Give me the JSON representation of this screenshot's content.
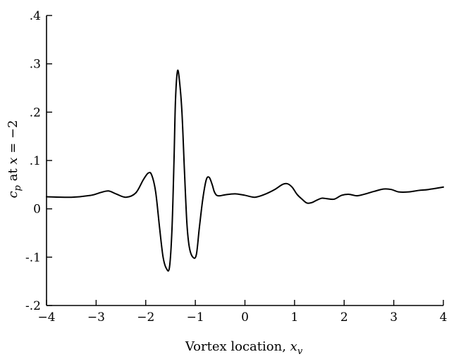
{
  "chart_data": {
    "type": "line",
    "title": "",
    "xlabel": "Vortex location, x_v",
    "xlabel_parts": {
      "text": "Vortex location, ",
      "var": "x",
      "sub": "v"
    },
    "ylabel": "c_p at x = −2",
    "ylabel_parts": {
      "var": "c",
      "sub": "p",
      "text": " at ",
      "var2": "x",
      "rest": " = −2"
    },
    "xlim": [
      -4,
      4
    ],
    "ylim": [
      -0.2,
      0.4
    ],
    "x_ticks": [
      {
        "value": -4,
        "label": "−4"
      },
      {
        "value": -3,
        "label": "−3"
      },
      {
        "value": -2,
        "label": "−2"
      },
      {
        "value": -1,
        "label": "−1"
      },
      {
        "value": 0,
        "label": "0"
      },
      {
        "value": 1,
        "label": "1"
      },
      {
        "value": 2,
        "label": "2"
      },
      {
        "value": 3,
        "label": "3"
      },
      {
        "value": 4,
        "label": "4"
      }
    ],
    "y_ticks": [
      {
        "value": -0.2,
        "label": "-.2"
      },
      {
        "value": -0.1,
        "label": "-.1"
      },
      {
        "value": 0,
        "label": "0"
      },
      {
        "value": 0.1,
        "label": ".1"
      },
      {
        "value": 0.2,
        "label": ".2"
      },
      {
        "value": 0.3,
        "label": ".3"
      },
      {
        "value": 0.4,
        "label": ".4"
      }
    ],
    "grid": false,
    "series": [
      {
        "x": [
          -4.0,
          -3.5,
          -3.1,
          -2.9,
          -2.75,
          -2.6,
          -2.4,
          -2.2,
          -2.05,
          -1.95,
          -1.88,
          -1.8,
          -1.72,
          -1.65,
          -1.58,
          -1.52,
          -1.47,
          -1.43,
          -1.4,
          -1.36,
          -1.32,
          -1.27,
          -1.22,
          -1.17,
          -1.12,
          -1.05,
          -0.98,
          -0.92,
          -0.85,
          -0.78,
          -0.72,
          -0.66,
          -0.62,
          -0.57,
          -0.5,
          -0.4,
          -0.2,
          0.0,
          0.2,
          0.4,
          0.6,
          0.75,
          0.85,
          0.95,
          1.05,
          1.15,
          1.25,
          1.35,
          1.45,
          1.55,
          1.65,
          1.8,
          1.95,
          2.1,
          2.25,
          2.4,
          2.6,
          2.8,
          2.95,
          3.1,
          3.3,
          3.5,
          3.7,
          4.0
        ],
        "y": [
          0.025,
          0.024,
          0.028,
          0.034,
          0.037,
          0.031,
          0.024,
          0.033,
          0.06,
          0.074,
          0.07,
          0.035,
          -0.04,
          -0.1,
          -0.124,
          -0.12,
          -0.04,
          0.1,
          0.225,
          0.285,
          0.265,
          0.2,
          0.08,
          -0.03,
          -0.08,
          -0.1,
          -0.095,
          -0.04,
          0.02,
          0.06,
          0.065,
          0.05,
          0.036,
          0.028,
          0.027,
          0.029,
          0.031,
          0.028,
          0.024,
          0.03,
          0.04,
          0.05,
          0.052,
          0.045,
          0.03,
          0.02,
          0.012,
          0.013,
          0.018,
          0.022,
          0.021,
          0.02,
          0.028,
          0.03,
          0.027,
          0.03,
          0.036,
          0.041,
          0.04,
          0.035,
          0.035,
          0.038,
          0.04,
          0.045
        ]
      }
    ]
  }
}
